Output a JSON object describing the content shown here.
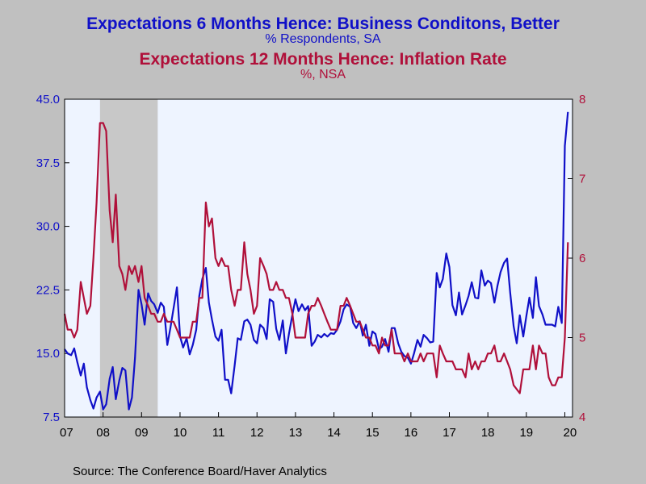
{
  "chart_data": {
    "type": "line",
    "title": "Expectations 6 Months Hence: Business Conditons, Better",
    "subtitle": "% Respondents, SA",
    "title2": "Expectations 12 Months Hence: Inflation Rate",
    "subtitle2": "%, NSA",
    "source": "Source:  The Conference Board/Haver Analytics",
    "x_ticks": [
      "07",
      "08",
      "09",
      "10",
      "11",
      "12",
      "13",
      "14",
      "15",
      "16",
      "17",
      "18",
      "19",
      "20"
    ],
    "y_left": {
      "ylim": [
        7.5,
        45.0
      ],
      "ticks": [
        "45.0",
        "37.5",
        "30.0",
        "22.5",
        "15.0",
        "7.5"
      ]
    },
    "y_right": {
      "ylim": [
        4,
        8
      ],
      "ticks": [
        "8",
        "7",
        "6",
        "5",
        "4"
      ]
    },
    "recession": {
      "start": 2007.92,
      "end": 2009.42
    },
    "colors": {
      "business": "#1010c8",
      "inflation": "#b0103a",
      "plot_bg": "#eef4ff",
      "recession": "#c8c8c8"
    },
    "series": [
      {
        "name": "Expectations 6 Months Hence: Business Conditons, Better",
        "axis": "left",
        "x": [
          2007.0,
          2007.08,
          2007.17,
          2007.25,
          2007.33,
          2007.42,
          2007.5,
          2007.58,
          2007.67,
          2007.75,
          2007.83,
          2007.92,
          2008.0,
          2008.08,
          2008.17,
          2008.25,
          2008.33,
          2008.42,
          2008.5,
          2008.58,
          2008.67,
          2008.75,
          2008.83,
          2008.92,
          2009.0,
          2009.08,
          2009.17,
          2009.25,
          2009.33,
          2009.42,
          2009.5,
          2009.58,
          2009.67,
          2009.75,
          2009.83,
          2009.92,
          2010.0,
          2010.08,
          2010.17,
          2010.25,
          2010.33,
          2010.42,
          2010.5,
          2010.58,
          2010.67,
          2010.75,
          2010.83,
          2010.92,
          2011.0,
          2011.08,
          2011.17,
          2011.25,
          2011.33,
          2011.42,
          2011.5,
          2011.58,
          2011.67,
          2011.75,
          2011.83,
          2011.92,
          2012.0,
          2012.08,
          2012.17,
          2012.25,
          2012.33,
          2012.42,
          2012.5,
          2012.58,
          2012.67,
          2012.75,
          2012.83,
          2012.92,
          2013.0,
          2013.08,
          2013.17,
          2013.25,
          2013.33,
          2013.42,
          2013.5,
          2013.58,
          2013.67,
          2013.75,
          2013.83,
          2013.92,
          2014.0,
          2014.08,
          2014.17,
          2014.25,
          2014.33,
          2014.42,
          2014.5,
          2014.58,
          2014.67,
          2014.75,
          2014.83,
          2014.92,
          2015.0,
          2015.08,
          2015.17,
          2015.25,
          2015.33,
          2015.42,
          2015.5,
          2015.58,
          2015.67,
          2015.75,
          2015.83,
          2015.92,
          2016.0,
          2016.08,
          2016.17,
          2016.25,
          2016.33,
          2016.42,
          2016.5,
          2016.58,
          2016.67,
          2016.75,
          2016.83,
          2016.92,
          2017.0,
          2017.08,
          2017.17,
          2017.25,
          2017.33,
          2017.42,
          2017.5,
          2017.58,
          2017.67,
          2017.75,
          2017.83,
          2017.92,
          2018.0,
          2018.08,
          2018.17,
          2018.25,
          2018.33,
          2018.42,
          2018.5,
          2018.58,
          2018.67,
          2018.75,
          2018.83,
          2018.92,
          2019.0,
          2019.08,
          2019.17,
          2019.25,
          2019.33,
          2019.42,
          2019.5,
          2019.58,
          2019.67,
          2019.75,
          2019.83,
          2019.92,
          2020.0,
          2020.08
        ],
        "values": [
          15.5,
          15.0,
          14.8,
          15.6,
          14.0,
          12.4,
          13.8,
          11.0,
          9.5,
          8.5,
          9.8,
          10.5,
          8.4,
          9.0,
          12.0,
          13.4,
          9.6,
          11.8,
          13.3,
          13.0,
          8.4,
          9.8,
          14.5,
          22.5,
          20.8,
          18.4,
          22.1,
          21.2,
          20.8,
          19.8,
          21.0,
          20.5,
          16.0,
          18.0,
          20.3,
          22.8,
          17.0,
          15.7,
          16.8,
          14.9,
          16.0,
          17.8,
          21.8,
          23.8,
          25.1,
          21.0,
          19.0,
          17.0,
          16.5,
          17.8,
          11.9,
          11.9,
          10.3,
          13.6,
          16.8,
          16.6,
          18.8,
          19.0,
          18.4,
          16.6,
          16.2,
          18.4,
          18.0,
          16.7,
          21.4,
          21.1,
          17.9,
          16.6,
          18.9,
          15.0,
          17.3,
          19.6,
          21.4,
          20.0,
          20.8,
          20.1,
          20.6,
          15.9,
          16.4,
          17.2,
          16.9,
          17.3,
          17.0,
          17.4,
          17.3,
          17.8,
          18.8,
          20.2,
          20.8,
          20.5,
          18.6,
          18.0,
          18.8,
          17.1,
          18.4,
          15.9,
          17.6,
          17.3,
          15.5,
          15.8,
          16.7,
          15.2,
          18.0,
          18.0,
          16.2,
          15.2,
          14.7,
          14.5,
          13.8,
          15.0,
          16.6,
          15.8,
          17.2,
          16.8,
          16.3,
          16.4,
          24.5,
          22.8,
          23.8,
          26.8,
          25.2,
          20.7,
          19.5,
          22.2,
          19.6,
          20.7,
          21.8,
          23.4,
          21.6,
          21.5,
          24.8,
          23.0,
          23.6,
          23.3,
          21.0,
          23.0,
          24.6,
          25.7,
          26.2,
          22.2,
          18.2,
          16.2,
          19.5,
          17.0,
          19.4,
          21.6,
          19.2,
          24.0,
          20.6,
          19.6,
          18.4,
          18.4,
          18.4,
          18.2,
          20.5,
          18.6,
          39.5,
          43.5
        ]
      },
      {
        "name": "Expectations 12 Months Hence: Inflation Rate",
        "axis": "right",
        "x": [
          2007.0,
          2007.08,
          2007.17,
          2007.25,
          2007.33,
          2007.42,
          2007.5,
          2007.58,
          2007.67,
          2007.75,
          2007.83,
          2007.92,
          2008.0,
          2008.08,
          2008.17,
          2008.25,
          2008.33,
          2008.42,
          2008.5,
          2008.58,
          2008.67,
          2008.75,
          2008.83,
          2008.92,
          2009.0,
          2009.08,
          2009.17,
          2009.25,
          2009.33,
          2009.42,
          2009.5,
          2009.58,
          2009.67,
          2009.75,
          2009.83,
          2009.92,
          2010.0,
          2010.08,
          2010.17,
          2010.25,
          2010.33,
          2010.42,
          2010.5,
          2010.58,
          2010.67,
          2010.75,
          2010.83,
          2010.92,
          2011.0,
          2011.08,
          2011.17,
          2011.25,
          2011.33,
          2011.42,
          2011.5,
          2011.58,
          2011.67,
          2011.75,
          2011.83,
          2011.92,
          2012.0,
          2012.08,
          2012.17,
          2012.25,
          2012.33,
          2012.42,
          2012.5,
          2012.58,
          2012.67,
          2012.75,
          2012.83,
          2012.92,
          2013.0,
          2013.08,
          2013.17,
          2013.25,
          2013.33,
          2013.42,
          2013.5,
          2013.58,
          2013.67,
          2013.75,
          2013.83,
          2013.92,
          2014.0,
          2014.08,
          2014.17,
          2014.25,
          2014.33,
          2014.42,
          2014.5,
          2014.58,
          2014.67,
          2014.75,
          2014.83,
          2014.92,
          2015.0,
          2015.08,
          2015.17,
          2015.25,
          2015.33,
          2015.42,
          2015.5,
          2015.58,
          2015.67,
          2015.75,
          2015.83,
          2015.92,
          2016.0,
          2016.08,
          2016.17,
          2016.25,
          2016.33,
          2016.42,
          2016.5,
          2016.58,
          2016.67,
          2016.75,
          2016.83,
          2016.92,
          2017.0,
          2017.08,
          2017.17,
          2017.25,
          2017.33,
          2017.42,
          2017.5,
          2017.58,
          2017.67,
          2017.75,
          2017.83,
          2017.92,
          2018.0,
          2018.08,
          2018.17,
          2018.25,
          2018.33,
          2018.42,
          2018.5,
          2018.58,
          2018.67,
          2018.75,
          2018.83,
          2018.92,
          2019.0,
          2019.08,
          2019.17,
          2019.25,
          2019.33,
          2019.42,
          2019.5,
          2019.58,
          2019.67,
          2019.75,
          2019.83,
          2019.92,
          2020.0,
          2020.08
        ],
        "values": [
          5.3,
          5.1,
          5.1,
          5.0,
          5.1,
          5.7,
          5.5,
          5.3,
          5.4,
          6.0,
          6.7,
          7.7,
          7.7,
          7.6,
          6.6,
          6.2,
          6.8,
          5.9,
          5.8,
          5.6,
          5.9,
          5.8,
          5.9,
          5.7,
          5.9,
          5.5,
          5.4,
          5.3,
          5.3,
          5.2,
          5.2,
          5.3,
          5.2,
          5.2,
          5.2,
          5.1,
          5.0,
          5.0,
          5.0,
          5.0,
          5.2,
          5.2,
          5.5,
          5.5,
          6.7,
          6.4,
          6.5,
          6.0,
          5.9,
          6.0,
          5.9,
          5.9,
          5.6,
          5.4,
          5.6,
          5.6,
          6.2,
          5.8,
          5.6,
          5.3,
          5.4,
          6.0,
          5.9,
          5.8,
          5.6,
          5.6,
          5.7,
          5.6,
          5.6,
          5.5,
          5.5,
          5.3,
          5.0,
          5.0,
          5.0,
          5.0,
          5.3,
          5.4,
          5.4,
          5.5,
          5.4,
          5.3,
          5.2,
          5.1,
          5.1,
          5.1,
          5.4,
          5.4,
          5.5,
          5.4,
          5.3,
          5.2,
          5.2,
          5.1,
          5.0,
          5.0,
          4.9,
          4.9,
          4.8,
          5.0,
          4.9,
          4.9,
          5.1,
          4.8,
          4.8,
          4.8,
          4.7,
          4.8,
          4.7,
          4.7,
          4.7,
          4.8,
          4.7,
          4.8,
          4.8,
          4.8,
          4.5,
          4.9,
          4.8,
          4.7,
          4.7,
          4.7,
          4.6,
          4.6,
          4.6,
          4.5,
          4.8,
          4.6,
          4.7,
          4.6,
          4.7,
          4.7,
          4.8,
          4.8,
          4.9,
          4.7,
          4.7,
          4.8,
          4.7,
          4.6,
          4.4,
          4.35,
          4.3,
          4.6,
          4.6,
          4.6,
          4.9,
          4.6,
          4.9,
          4.8,
          4.8,
          4.5,
          4.4,
          4.4,
          4.5,
          4.5,
          5.0,
          6.2
        ]
      }
    ]
  }
}
